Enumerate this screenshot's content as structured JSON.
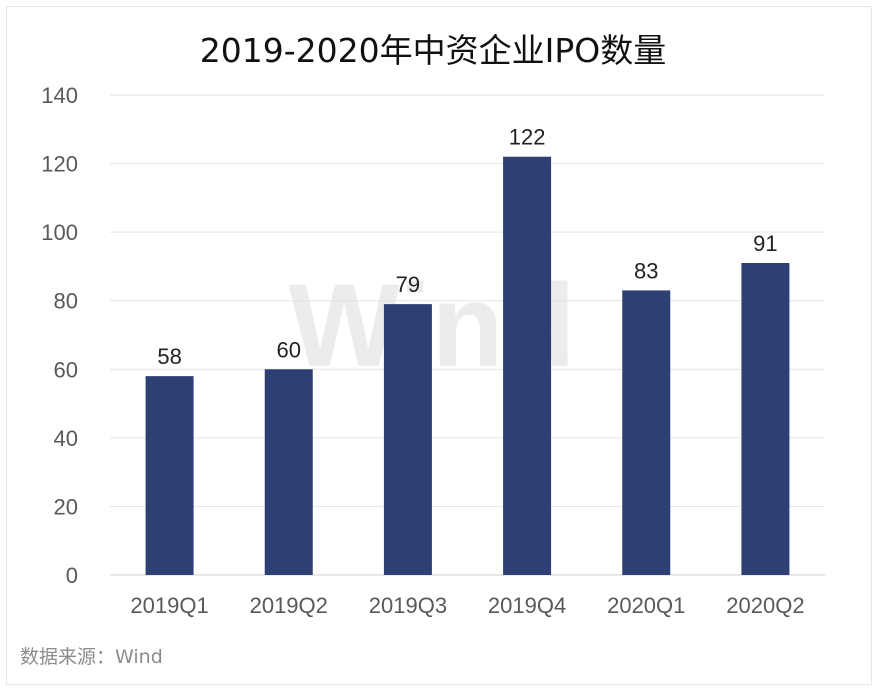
{
  "chart_data": {
    "type": "bar",
    "title": "2019-2020年中资企业IPO数量",
    "categories": [
      "2019Q1",
      "2019Q2",
      "2019Q3",
      "2019Q4",
      "2020Q1",
      "2020Q2"
    ],
    "values": [
      58,
      60,
      79,
      122,
      83,
      91
    ],
    "ylim": [
      0,
      140
    ],
    "yticks": [
      "0",
      "20",
      "40",
      "60",
      "80",
      "100",
      "120",
      "140"
    ],
    "xlabel": "",
    "ylabel": "",
    "grid": true,
    "data_labels": true,
    "bar_color": "#2e3f73",
    "gridline_color": "#e4e4e4"
  },
  "source": "数据来源：Wind",
  "watermark": "Wind"
}
